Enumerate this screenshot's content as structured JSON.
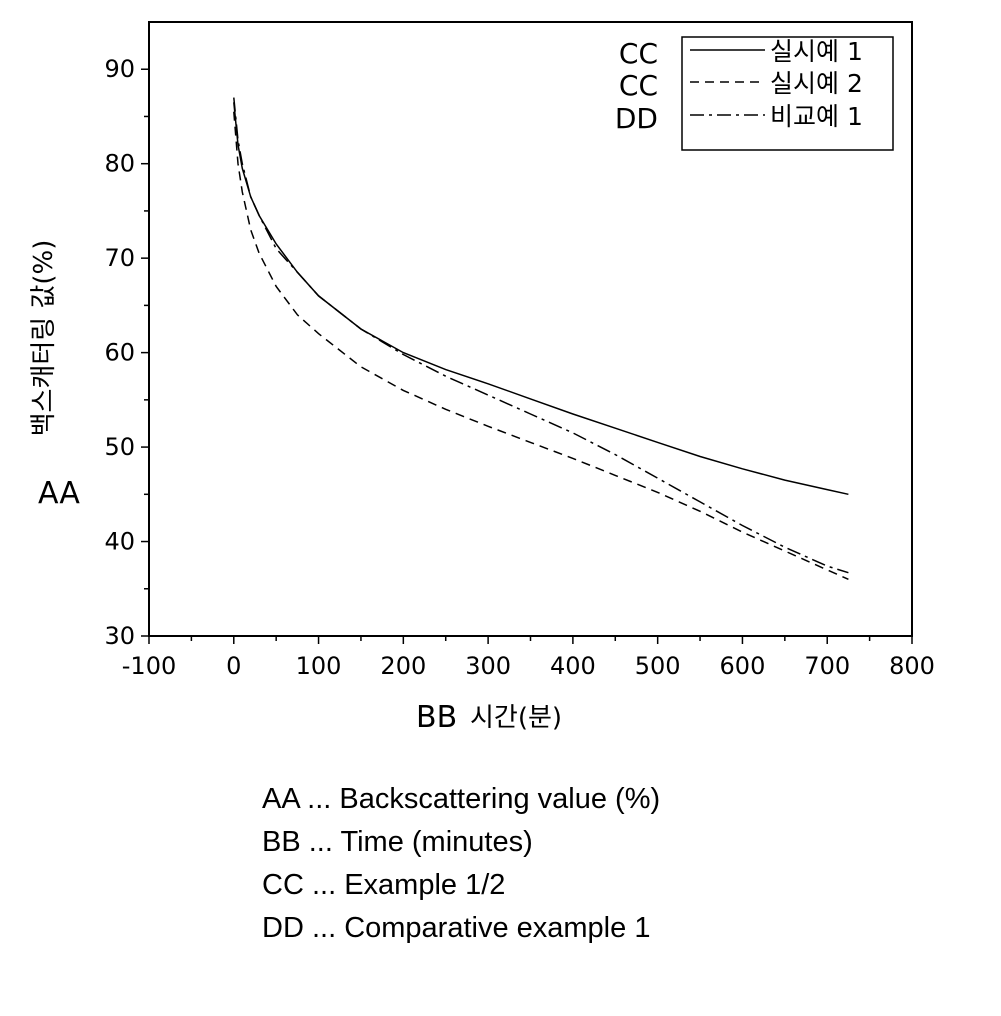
{
  "chart_data": {
    "type": "line",
    "title": "",
    "xlabel_code": "BB",
    "xlabel": "시간(분)",
    "ylabel_code": "AA",
    "ylabel": "백스캐터링 값(%)",
    "xlim": [
      -100,
      800
    ],
    "ylim": [
      30,
      95
    ],
    "xticks": [
      -100,
      0,
      100,
      200,
      300,
      400,
      500,
      600,
      700,
      800
    ],
    "yticks": [
      30,
      40,
      50,
      60,
      70,
      80,
      90
    ],
    "grid": false,
    "legend_position": "top-right",
    "series": [
      {
        "name": "실시예 1",
        "code": "CC",
        "style": "solid",
        "x": [
          0,
          5,
          10,
          20,
          30,
          50,
          75,
          100,
          150,
          200,
          250,
          300,
          350,
          400,
          450,
          500,
          550,
          600,
          650,
          700,
          725
        ],
        "y": [
          86.5,
          82.0,
          79.5,
          76.5,
          74.5,
          71.5,
          68.5,
          66.0,
          62.5,
          60.0,
          58.2,
          56.7,
          55.1,
          53.5,
          52.0,
          50.5,
          49.0,
          47.7,
          46.5,
          45.5,
          45.0
        ]
      },
      {
        "name": "실시예 2",
        "code": "CC",
        "style": "dashed",
        "x": [
          0,
          5,
          10,
          20,
          30,
          50,
          75,
          100,
          150,
          200,
          250,
          300,
          350,
          400,
          450,
          500,
          550,
          600,
          650,
          700,
          725
        ],
        "y": [
          85.5,
          80.0,
          77.0,
          73.0,
          70.5,
          67.0,
          64.0,
          62.0,
          58.5,
          56.0,
          54.0,
          52.2,
          50.5,
          48.8,
          47.0,
          45.2,
          43.2,
          41.0,
          39.0,
          37.0,
          36.0
        ]
      },
      {
        "name": "비교예 1",
        "code": "DD",
        "style": "dashdot",
        "x": [
          0,
          5,
          10,
          20,
          30,
          50,
          75,
          100,
          150,
          200,
          250,
          300,
          350,
          400,
          450,
          500,
          550,
          600,
          650,
          700,
          725
        ],
        "y": [
          87.0,
          82.5,
          80.0,
          76.5,
          74.5,
          71.0,
          68.5,
          66.0,
          62.5,
          59.8,
          57.5,
          55.5,
          53.5,
          51.5,
          49.2,
          46.7,
          44.2,
          41.7,
          39.4,
          37.4,
          36.7
        ]
      }
    ]
  },
  "key": [
    {
      "code": "AA",
      "text": "Backscattering value (%)"
    },
    {
      "code": "BB",
      "text": "Time (minutes)"
    },
    {
      "code": "CC",
      "text": "Example 1/2"
    },
    {
      "code": "DD",
      "text": "Comparative example 1"
    }
  ],
  "key_separator": "..."
}
